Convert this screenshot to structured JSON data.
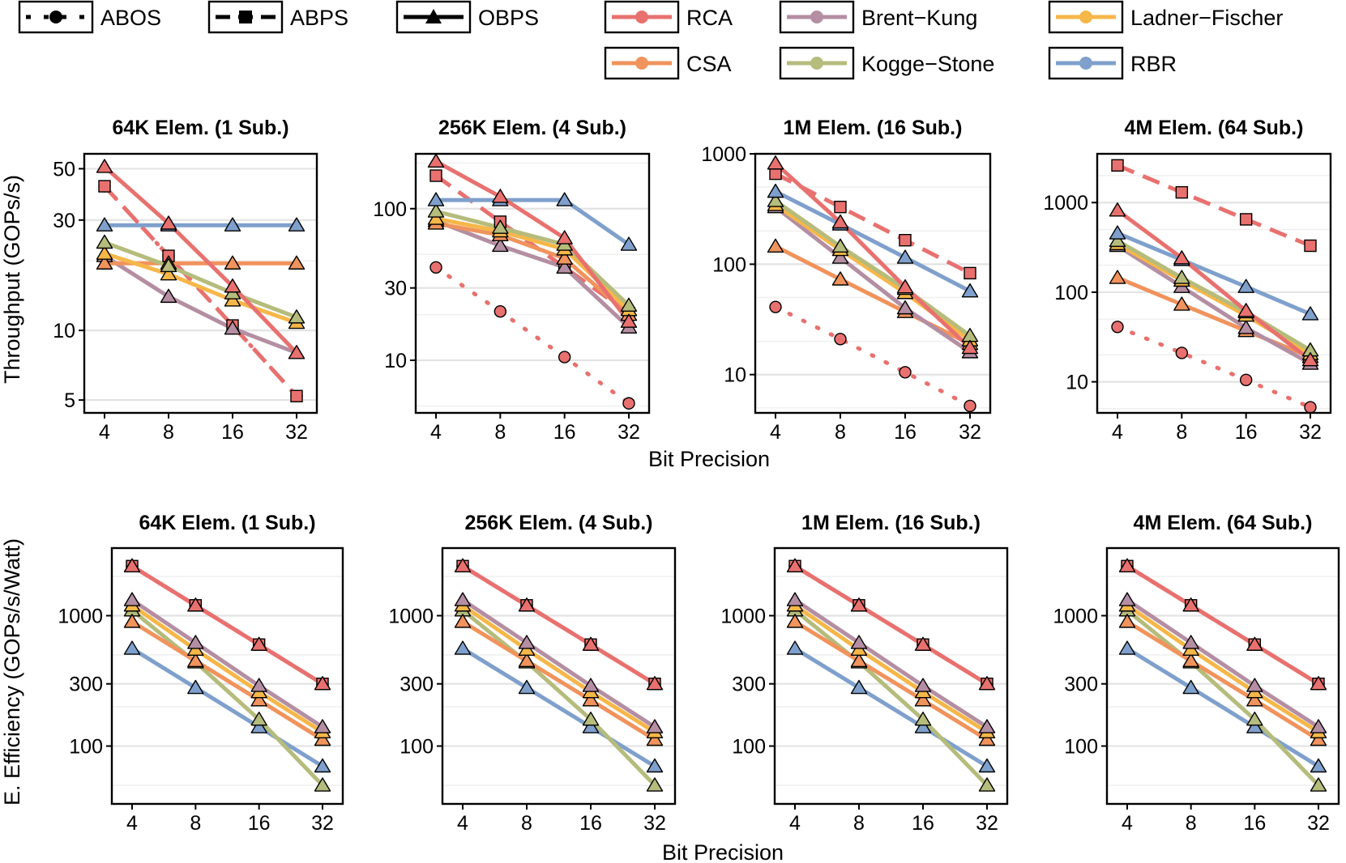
{
  "legend": {
    "styles": [
      {
        "name": "ABOS",
        "dash": "dotted",
        "marker": "circle"
      },
      {
        "name": "ABPS",
        "dash": "dashed",
        "marker": "square"
      },
      {
        "name": "OBPS",
        "dash": "solid",
        "marker": "triangle"
      }
    ],
    "adders": [
      {
        "name": "RCA",
        "color": "#E8716F"
      },
      {
        "name": "CSA",
        "color": "#F0935C"
      },
      {
        "name": "Brent−Kung",
        "color": "#B48EA2"
      },
      {
        "name": "Kogge−Stone",
        "color": "#B5BC7C"
      },
      {
        "name": "Ladner−Fischer",
        "color": "#F6B749"
      },
      {
        "name": "RBR",
        "color": "#7FA0CC"
      }
    ]
  },
  "chart_data": [
    {
      "type": "line",
      "row": "throughput",
      "scale": "log",
      "title": "64K Elem. (1 Sub.)",
      "x": [
        4,
        8,
        16,
        32
      ],
      "ylim": [
        4.4,
        58
      ],
      "yticks": [
        5,
        10,
        30,
        50
      ],
      "ytick_labels": [
        "5",
        "10",
        "30",
        "50"
      ],
      "ylabel": "Throughput (GOPs/s)",
      "xlabel": "Bit Precision",
      "series": [
        {
          "name": "RCA-ABOS",
          "adder": "RCA",
          "style": "ABOS",
          "values": [
            42,
            21,
            10.5,
            5.2
          ]
        },
        {
          "name": "RCA-ABPS",
          "adder": "RCA",
          "style": "ABPS",
          "values": [
            42,
            21,
            10.5,
            5.2
          ]
        },
        {
          "name": "Brent-Kung-OBPS",
          "adder": "Brent−Kung",
          "style": "OBPS",
          "values": [
            21,
            14,
            10.2,
            8
          ]
        },
        {
          "name": "CSA-OBPS",
          "adder": "CSA",
          "style": "OBPS",
          "values": [
            19.5,
            19.5,
            19.5,
            19.5
          ]
        },
        {
          "name": "Ladner-Fischer-OBPS",
          "adder": "Ladner−Fischer",
          "style": "OBPS",
          "values": [
            21.5,
            17.5,
            13.5,
            10.8
          ]
        },
        {
          "name": "Kogge-Stone-OBPS",
          "adder": "Kogge−Stone",
          "style": "OBPS",
          "values": [
            24,
            19,
            14.5,
            11.4
          ]
        },
        {
          "name": "RBR-OBPS",
          "adder": "RBR",
          "style": "OBPS",
          "values": [
            28.5,
            28.5,
            28.5,
            28.5
          ]
        },
        {
          "name": "RCA-OBPS",
          "adder": "RCA",
          "style": "OBPS",
          "values": [
            51,
            29,
            15.5,
            8
          ]
        }
      ]
    },
    {
      "type": "line",
      "row": "throughput",
      "scale": "log",
      "title": "256K Elem. (4 Sub.)",
      "x": [
        4,
        8,
        16,
        32
      ],
      "ylim": [
        4.5,
        230
      ],
      "yticks": [
        10,
        30,
        100
      ],
      "ytick_labels": [
        "10",
        "30",
        "100"
      ],
      "ylabel": "Throughput (GOPs/s)",
      "xlabel": "Bit Precision",
      "series": [
        {
          "name": "RCA-ABOS",
          "adder": "RCA",
          "style": "ABOS",
          "values": [
            41,
            21,
            10.5,
            5.2
          ]
        },
        {
          "name": "RCA-ABPS",
          "adder": "RCA",
          "style": "ABPS",
          "values": [
            165,
            82,
            41,
            20.5
          ]
        },
        {
          "name": "Brent-Kung-OBPS",
          "adder": "Brent−Kung",
          "style": "OBPS",
          "values": [
            83,
            57,
            41,
            16.5
          ]
        },
        {
          "name": "CSA-OBPS",
          "adder": "CSA",
          "style": "OBPS",
          "values": [
            80,
            67,
            47,
            20
          ]
        },
        {
          "name": "Ladner-Fischer-OBPS",
          "adder": "Ladner−Fischer",
          "style": "OBPS",
          "values": [
            86,
            71,
            54,
            21.5
          ]
        },
        {
          "name": "Kogge-Stone-OBPS",
          "adder": "Kogge−Stone",
          "style": "OBPS",
          "values": [
            96,
            75,
            58,
            23
          ]
        },
        {
          "name": "RBR-OBPS",
          "adder": "RBR",
          "style": "OBPS",
          "values": [
            114,
            114,
            114,
            58
          ]
        },
        {
          "name": "RCA-OBPS",
          "adder": "RCA",
          "style": "OBPS",
          "values": [
            205,
            120,
            64,
            18
          ]
        }
      ]
    },
    {
      "type": "line",
      "row": "throughput",
      "scale": "log",
      "title": "1M Elem. (16 Sub.)",
      "x": [
        4,
        8,
        16,
        32
      ],
      "ylim": [
        4.5,
        1000
      ],
      "yticks": [
        10,
        100,
        1000
      ],
      "ytick_labels": [
        "10",
        "100",
        "1000"
      ],
      "ylabel": "Throughput (GOPs/s)",
      "xlabel": "Bit Precision",
      "series": [
        {
          "name": "RCA-ABOS",
          "adder": "RCA",
          "style": "ABOS",
          "values": [
            41,
            21,
            10.5,
            5.2
          ]
        },
        {
          "name": "RCA-ABPS",
          "adder": "RCA",
          "style": "ABPS",
          "values": [
            660,
            330,
            165,
            83
          ]
        },
        {
          "name": "CSA-OBPS",
          "adder": "CSA",
          "style": "OBPS",
          "values": [
            145,
            73,
            37,
            19
          ]
        },
        {
          "name": "Brent-Kung-OBPS",
          "adder": "Brent−Kung",
          "style": "OBPS",
          "values": [
            330,
            115,
            40,
            16
          ]
        },
        {
          "name": "Ladner-Fischer-OBPS",
          "adder": "Ladner−Fischer",
          "style": "OBPS",
          "values": [
            345,
            135,
            55,
            20.5
          ]
        },
        {
          "name": "Kogge-Stone-OBPS",
          "adder": "Kogge−Stone",
          "style": "OBPS",
          "values": [
            375,
            145,
            60,
            22.5
          ]
        },
        {
          "name": "RBR-OBPS",
          "adder": "RBR",
          "style": "OBPS",
          "values": [
            455,
            230,
            115,
            57
          ]
        },
        {
          "name": "RCA-OBPS",
          "adder": "RCA",
          "style": "OBPS",
          "values": [
            820,
            240,
            62,
            17.5
          ]
        }
      ]
    },
    {
      "type": "line",
      "row": "throughput",
      "scale": "log",
      "title": "4M Elem. (64 Sub.)",
      "x": [
        4,
        8,
        16,
        32
      ],
      "ylim": [
        4.5,
        3500
      ],
      "yticks": [
        10,
        100,
        1000
      ],
      "ytick_labels": [
        "10",
        "100",
        "1000"
      ],
      "ylabel": "Throughput (GOPs/s)",
      "xlabel": "Bit Precision",
      "series": [
        {
          "name": "RCA-ABOS",
          "adder": "RCA",
          "style": "ABOS",
          "values": [
            41,
            21,
            10.5,
            5.2
          ]
        },
        {
          "name": "RCA-ABPS",
          "adder": "RCA",
          "style": "ABPS",
          "values": [
            2600,
            1300,
            650,
            330
          ]
        },
        {
          "name": "CSA-OBPS",
          "adder": "CSA",
          "style": "OBPS",
          "values": [
            145,
            73,
            37,
            19
          ]
        },
        {
          "name": "Brent-Kung-OBPS",
          "adder": "Brent−Kung",
          "style": "OBPS",
          "values": [
            330,
            115,
            40,
            16
          ]
        },
        {
          "name": "Ladner-Fischer-OBPS",
          "adder": "Ladner−Fischer",
          "style": "OBPS",
          "values": [
            345,
            135,
            55,
            20.5
          ]
        },
        {
          "name": "Kogge-Stone-OBPS",
          "adder": "Kogge−Stone",
          "style": "OBPS",
          "values": [
            375,
            145,
            60,
            22.5
          ]
        },
        {
          "name": "RBR-OBPS",
          "adder": "RBR",
          "style": "OBPS",
          "values": [
            455,
            230,
            115,
            57
          ]
        },
        {
          "name": "RCA-OBPS",
          "adder": "RCA",
          "style": "OBPS",
          "values": [
            820,
            240,
            62,
            17.5
          ]
        }
      ]
    },
    {
      "type": "line",
      "row": "efficiency",
      "scale": "log",
      "title": "64K Elem. (1 Sub.)",
      "x": [
        4,
        8,
        16,
        32
      ],
      "ylim": [
        36,
        3300
      ],
      "yticks": [
        100,
        300,
        1000
      ],
      "ytick_labels": [
        "100",
        "300",
        "1000"
      ],
      "ylabel": "E. Efficiency (GOPs/s/Watt)",
      "xlabel": "Bit Precision",
      "series": [
        {
          "name": "RCA-ABOS",
          "adder": "RCA",
          "style": "ABOS",
          "values": [
            2400,
            1200,
            600,
            300
          ]
        },
        {
          "name": "RCA-ABPS",
          "adder": "RCA",
          "style": "ABPS",
          "values": [
            2400,
            1200,
            600,
            300
          ]
        },
        {
          "name": "RCA-OBPS",
          "adder": "RCA",
          "style": "OBPS",
          "values": [
            2400,
            1200,
            600,
            300
          ]
        },
        {
          "name": "RBR-OBPS",
          "adder": "RBR",
          "style": "OBPS",
          "values": [
            560,
            280,
            140,
            70
          ]
        },
        {
          "name": "Kogge-Stone-OBPS",
          "adder": "Kogge−Stone",
          "style": "OBPS",
          "values": [
            1100,
            440,
            160,
            50
          ]
        },
        {
          "name": "CSA-OBPS",
          "adder": "CSA",
          "style": "OBPS",
          "values": [
            900,
            450,
            225,
            112
          ]
        },
        {
          "name": "Ladner-Fischer-OBPS",
          "adder": "Ladner−Fischer",
          "style": "OBPS",
          "values": [
            1200,
            550,
            260,
            128
          ]
        },
        {
          "name": "Brent-Kung-OBPS",
          "adder": "Brent−Kung",
          "style": "OBPS",
          "values": [
            1320,
            620,
            290,
            140
          ]
        }
      ]
    },
    {
      "type": "line",
      "row": "efficiency",
      "scale": "log",
      "title": "256K Elem. (4 Sub.)",
      "x": [
        4,
        8,
        16,
        32
      ],
      "ylim": [
        36,
        3300
      ],
      "yticks": [
        100,
        300,
        1000
      ],
      "ytick_labels": [
        "100",
        "300",
        "1000"
      ],
      "ylabel": "E. Efficiency (GOPs/s/Watt)",
      "xlabel": "Bit Precision",
      "series": [
        {
          "name": "RCA-ABOS",
          "adder": "RCA",
          "style": "ABOS",
          "values": [
            2400,
            1200,
            600,
            300
          ]
        },
        {
          "name": "RCA-ABPS",
          "adder": "RCA",
          "style": "ABPS",
          "values": [
            2400,
            1200,
            600,
            300
          ]
        },
        {
          "name": "RCA-OBPS",
          "adder": "RCA",
          "style": "OBPS",
          "values": [
            2400,
            1200,
            600,
            300
          ]
        },
        {
          "name": "RBR-OBPS",
          "adder": "RBR",
          "style": "OBPS",
          "values": [
            560,
            280,
            140,
            70
          ]
        },
        {
          "name": "Kogge-Stone-OBPS",
          "adder": "Kogge−Stone",
          "style": "OBPS",
          "values": [
            1100,
            440,
            160,
            50
          ]
        },
        {
          "name": "CSA-OBPS",
          "adder": "CSA",
          "style": "OBPS",
          "values": [
            900,
            450,
            225,
            112
          ]
        },
        {
          "name": "Ladner-Fischer-OBPS",
          "adder": "Ladner−Fischer",
          "style": "OBPS",
          "values": [
            1200,
            550,
            260,
            128
          ]
        },
        {
          "name": "Brent-Kung-OBPS",
          "adder": "Brent−Kung",
          "style": "OBPS",
          "values": [
            1320,
            620,
            290,
            140
          ]
        }
      ]
    },
    {
      "type": "line",
      "row": "efficiency",
      "scale": "log",
      "title": "1M Elem. (16 Sub.)",
      "x": [
        4,
        8,
        16,
        32
      ],
      "ylim": [
        36,
        3300
      ],
      "yticks": [
        100,
        300,
        1000
      ],
      "ytick_labels": [
        "100",
        "300",
        "1000"
      ],
      "ylabel": "E. Efficiency (GOPs/s/Watt)",
      "xlabel": "Bit Precision",
      "series": [
        {
          "name": "RCA-ABOS",
          "adder": "RCA",
          "style": "ABOS",
          "values": [
            2400,
            1200,
            600,
            300
          ]
        },
        {
          "name": "RCA-ABPS",
          "adder": "RCA",
          "style": "ABPS",
          "values": [
            2400,
            1200,
            600,
            300
          ]
        },
        {
          "name": "RCA-OBPS",
          "adder": "RCA",
          "style": "OBPS",
          "values": [
            2400,
            1200,
            600,
            300
          ]
        },
        {
          "name": "RBR-OBPS",
          "adder": "RBR",
          "style": "OBPS",
          "values": [
            560,
            280,
            140,
            70
          ]
        },
        {
          "name": "Kogge-Stone-OBPS",
          "adder": "Kogge−Stone",
          "style": "OBPS",
          "values": [
            1100,
            440,
            160,
            50
          ]
        },
        {
          "name": "CSA-OBPS",
          "adder": "CSA",
          "style": "OBPS",
          "values": [
            900,
            450,
            225,
            112
          ]
        },
        {
          "name": "Ladner-Fischer-OBPS",
          "adder": "Ladner−Fischer",
          "style": "OBPS",
          "values": [
            1200,
            550,
            260,
            128
          ]
        },
        {
          "name": "Brent-Kung-OBPS",
          "adder": "Brent−Kung",
          "style": "OBPS",
          "values": [
            1320,
            620,
            290,
            140
          ]
        }
      ]
    },
    {
      "type": "line",
      "row": "efficiency",
      "scale": "log",
      "title": "4M Elem. (64 Sub.)",
      "x": [
        4,
        8,
        16,
        32
      ],
      "ylim": [
        36,
        3300
      ],
      "yticks": [
        100,
        300,
        1000
      ],
      "ytick_labels": [
        "100",
        "300",
        "1000"
      ],
      "ylabel": "E. Efficiency (GOPs/s/Watt)",
      "xlabel": "Bit Precision",
      "series": [
        {
          "name": "RCA-ABOS",
          "adder": "RCA",
          "style": "ABOS",
          "values": [
            2400,
            1200,
            600,
            300
          ]
        },
        {
          "name": "RCA-ABPS",
          "adder": "RCA",
          "style": "ABPS",
          "values": [
            2400,
            1200,
            600,
            300
          ]
        },
        {
          "name": "RCA-OBPS",
          "adder": "RCA",
          "style": "OBPS",
          "values": [
            2400,
            1200,
            600,
            300
          ]
        },
        {
          "name": "RBR-OBPS",
          "adder": "RBR",
          "style": "OBPS",
          "values": [
            560,
            280,
            140,
            70
          ]
        },
        {
          "name": "Kogge-Stone-OBPS",
          "adder": "Kogge−Stone",
          "style": "OBPS",
          "values": [
            1100,
            440,
            160,
            50
          ]
        },
        {
          "name": "CSA-OBPS",
          "adder": "CSA",
          "style": "OBPS",
          "values": [
            900,
            450,
            225,
            112
          ]
        },
        {
          "name": "Ladner-Fischer-OBPS",
          "adder": "Ladner−Fischer",
          "style": "OBPS",
          "values": [
            1200,
            550,
            260,
            128
          ]
        },
        {
          "name": "Brent-Kung-OBPS",
          "adder": "Brent−Kung",
          "style": "OBPS",
          "values": [
            1320,
            620,
            290,
            140
          ]
        }
      ]
    }
  ],
  "axes": {
    "row1_ylabel": "Throughput (GOPs/s)",
    "row2_ylabel": "E. Efficiency (GOPs/s/Watt)",
    "xlabel": "Bit Precision"
  }
}
